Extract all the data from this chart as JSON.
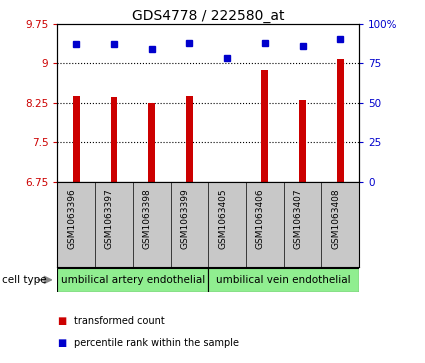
{
  "title": "GDS4778 / 222580_at",
  "samples": [
    "GSM1063396",
    "GSM1063397",
    "GSM1063398",
    "GSM1063399",
    "GSM1063405",
    "GSM1063406",
    "GSM1063407",
    "GSM1063408"
  ],
  "bar_values": [
    8.38,
    8.35,
    8.25,
    8.38,
    6.68,
    8.87,
    8.3,
    9.08
  ],
  "dot_values": [
    87,
    87,
    84,
    88,
    78,
    88,
    86,
    90
  ],
  "ylim_left": [
    6.75,
    9.75
  ],
  "ylim_right": [
    0,
    100
  ],
  "yticks_left": [
    6.75,
    7.5,
    8.25,
    9.0,
    9.75
  ],
  "yticks_right": [
    0,
    25,
    50,
    75,
    100
  ],
  "ytick_labels_left": [
    "6.75",
    "7.5",
    "8.25",
    "9",
    "9.75"
  ],
  "ytick_labels_right": [
    "0",
    "25",
    "50",
    "75",
    "100%"
  ],
  "hlines": [
    7.5,
    8.25,
    9.0
  ],
  "bar_color": "#cc0000",
  "dot_color": "#0000cc",
  "group1_label": "umbilical artery endothelial",
  "group2_label": "umbilical vein endothelial",
  "group_color": "#90ee90",
  "group1_samples": 4,
  "group2_samples": 4,
  "legend_bar_label": "transformed count",
  "legend_dot_label": "percentile rank within the sample",
  "cell_type_label": "cell type",
  "bg_color": "#ffffff",
  "tick_area_bg": "#c8c8c8",
  "title_fontsize": 10,
  "axis_fontsize": 7.5,
  "label_fontsize": 8,
  "bar_width": 0.18
}
